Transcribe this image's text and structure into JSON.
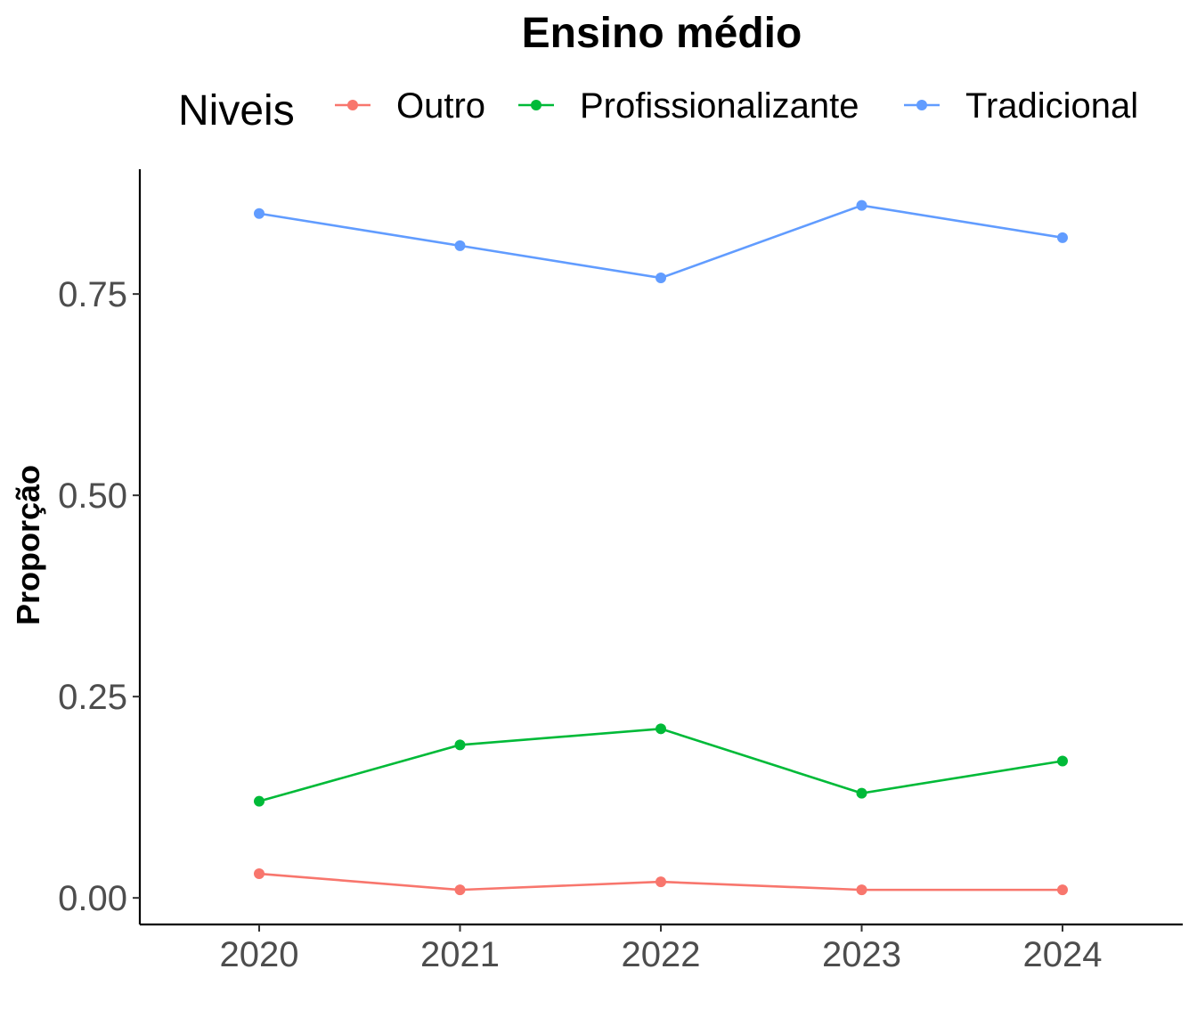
{
  "chart_data": {
    "type": "line",
    "title": "Ensino médio",
    "xlabel": "",
    "ylabel": "Proporção",
    "legend": {
      "title": "Niveis",
      "placement": "top"
    },
    "x": [
      "2020",
      "2021",
      "2022",
      "2023",
      "2024"
    ],
    "ylim": [
      -0.033,
      0.905
    ],
    "yticks": [
      0.0,
      0.25,
      0.5,
      0.75
    ],
    "ytick_labels": [
      "0.00",
      "0.25",
      "0.50",
      "0.75"
    ],
    "grid": false,
    "series": [
      {
        "name": "Outro",
        "color": "#F8766D",
        "values": [
          0.03,
          0.01,
          0.02,
          0.01,
          0.01
        ]
      },
      {
        "name": "Profissionalizante",
        "color": "#00BA38",
        "values": [
          0.12,
          0.19,
          0.21,
          0.13,
          0.17
        ]
      },
      {
        "name": "Tradicional",
        "color": "#619CFF",
        "values": [
          0.85,
          0.81,
          0.77,
          0.86,
          0.82
        ]
      }
    ]
  }
}
